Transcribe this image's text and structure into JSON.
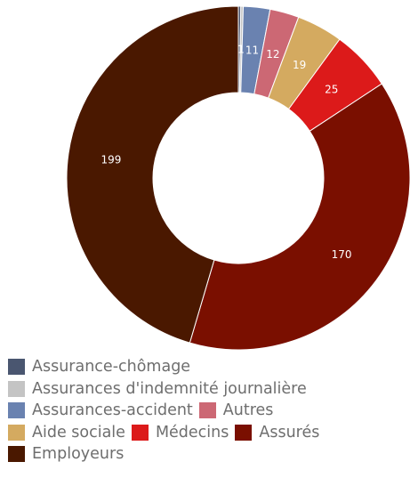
{
  "chart_data": {
    "type": "pie",
    "title": "",
    "donut": true,
    "slices": [
      {
        "label": "Assurance-chômage",
        "value": 1,
        "value_label": "",
        "color": "#4a5670"
      },
      {
        "label": "Assurances d'indemnité journalière",
        "value": 1,
        "value_label": "1",
        "color": "#c4c4c4"
      },
      {
        "label": "Assurances-accident",
        "value": 11,
        "value_label": "11",
        "color": "#6a82b0"
      },
      {
        "label": "Autres",
        "value": 12,
        "value_label": "12",
        "color": "#cc6874"
      },
      {
        "label": "Aide sociale",
        "value": 19,
        "value_label": "19",
        "color": "#d4aa60"
      },
      {
        "label": "Médecins",
        "value": 25,
        "value_label": "25",
        "color": "#dc1a1a"
      },
      {
        "label": "Assurés",
        "value": 170,
        "value_label": "170",
        "color": "#7a0f00"
      },
      {
        "label": "Employeurs",
        "value": 199,
        "value_label": "199",
        "color": "#4a1800"
      }
    ],
    "legend": {
      "position": "bottom",
      "rows": [
        [
          0
        ],
        [
          1
        ],
        [
          2,
          3
        ],
        [
          4,
          5,
          6
        ],
        [
          7
        ]
      ]
    }
  }
}
